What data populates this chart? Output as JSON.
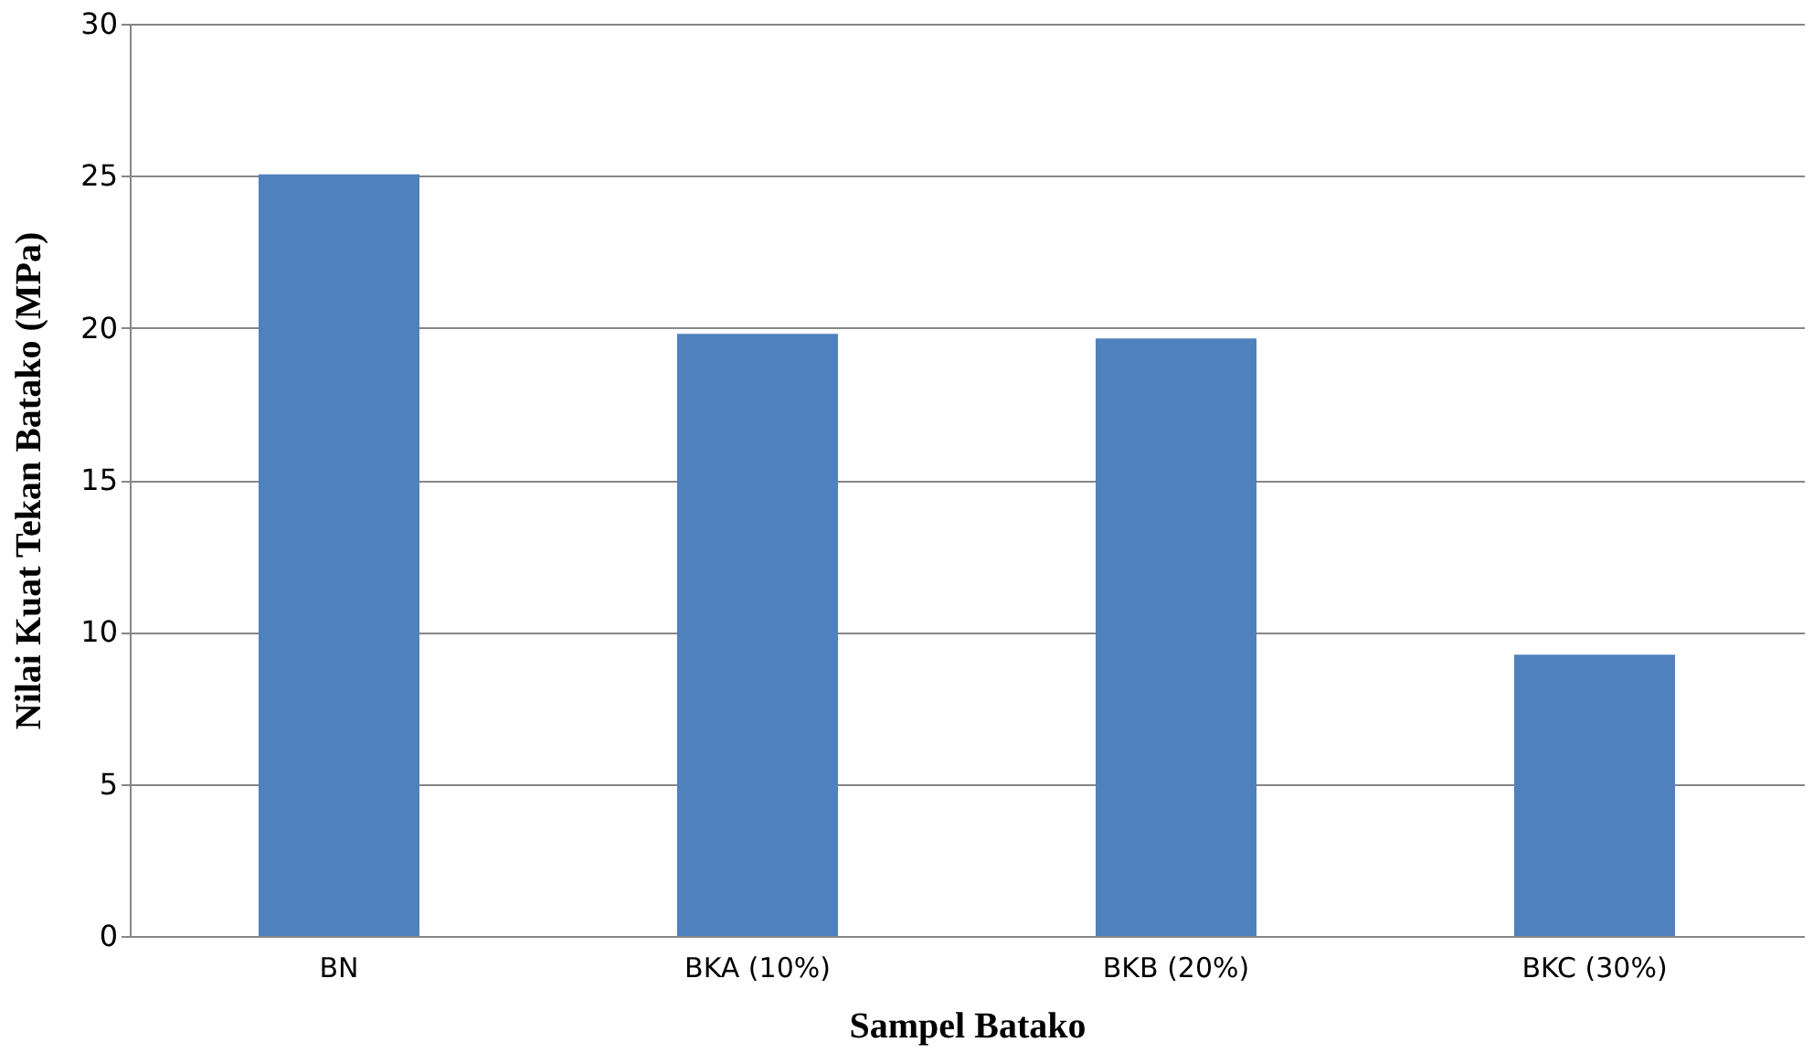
{
  "chart_data": {
    "type": "bar",
    "xlabel": "Sampel Batako",
    "ylabel": "Nilai Kuat Tekan Batako (MPa)",
    "categories": [
      "BN",
      "BKA (10%)",
      "BKB (20%)",
      "BKC (30%)"
    ],
    "values": [
      25.05,
      19.8,
      19.65,
      9.25
    ],
    "color": "#4f81bd",
    "ylim": [
      0,
      30
    ],
    "yticks": [
      0,
      5,
      10,
      15,
      20,
      25,
      30
    ],
    "grid": "y"
  }
}
